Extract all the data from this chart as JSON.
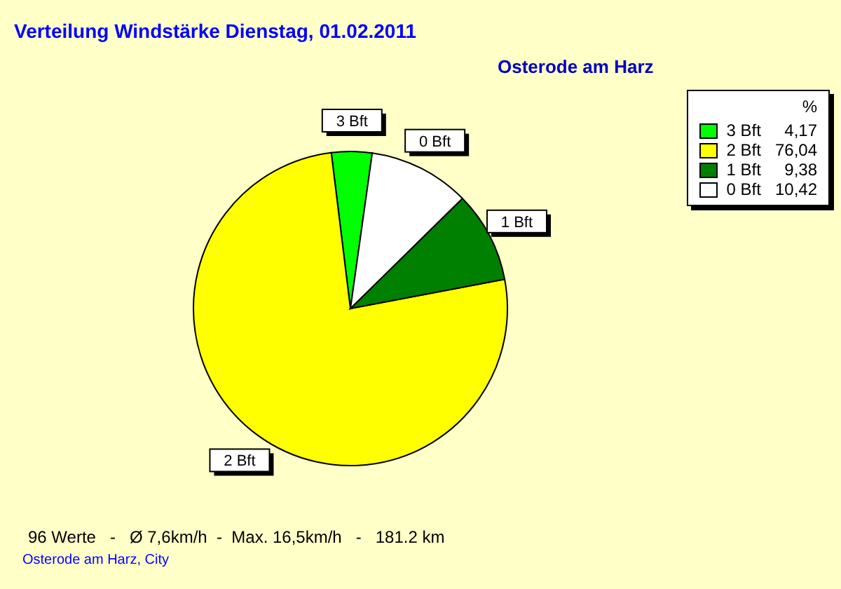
{
  "chart_data": {
    "type": "pie",
    "title": "Verteilung Windstärke  Dienstag, 01.02.2011",
    "subtitle": "Osterode am Harz",
    "legend_title": "%",
    "categories": [
      "3 Bft",
      "2 Bft",
      "1 Bft",
      "0 Bft"
    ],
    "values": [
      4.17,
      76.04,
      9.38,
      10.42
    ],
    "value_labels": [
      "4,17",
      "76,04",
      "9,38",
      "10,42"
    ],
    "colors": [
      "#00ff00",
      "#ffff00",
      "#008000",
      "#ffffff"
    ],
    "legend": "top right",
    "annotations": [
      "96 Werte   -   Ø 7,6km/h  -  Max. 16,5km/h   -   181.2 km",
      "Osterode am Harz, City"
    ]
  }
}
